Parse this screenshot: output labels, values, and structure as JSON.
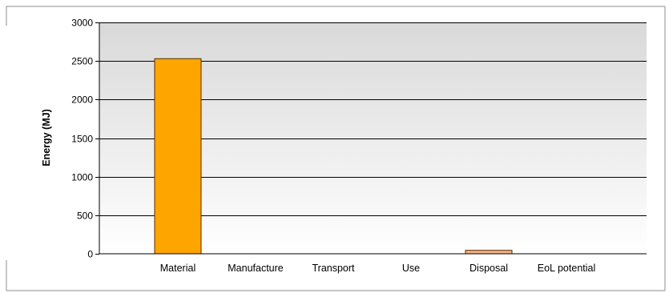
{
  "chart_data": {
    "type": "bar",
    "categories": [
      "Material",
      "Manufacture",
      "Transport",
      "Use",
      "Disposal",
      "EoL potential"
    ],
    "values": [
      2530,
      0,
      0,
      0,
      45,
      0
    ],
    "title": "",
    "xlabel": "",
    "ylabel": "Energy (MJ)",
    "ylim": [
      0,
      3000
    ],
    "yticks": [
      0,
      500,
      1000,
      1500,
      2000,
      2500,
      3000
    ],
    "grid": true,
    "legend": "none",
    "bar_colors": [
      "#ffa500",
      "#ffa500",
      "#ffa500",
      "#ffa500",
      "#f5b183",
      "#ffa500"
    ],
    "bar_edge_color": "#5a2d00",
    "plot_gradient": [
      "#d9d9d9",
      "#ffffff"
    ]
  }
}
